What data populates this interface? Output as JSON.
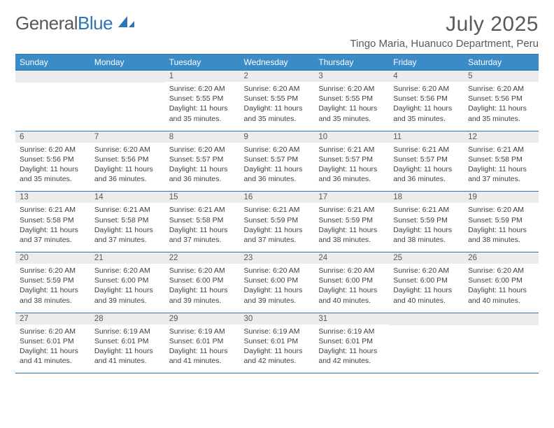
{
  "brand": {
    "part1": "General",
    "part2": "Blue"
  },
  "title": "July 2025",
  "location": "Tingo Maria, Huanuco Department, Peru",
  "colors": {
    "header_bg": "#3b8bc7",
    "border": "#2e75b6",
    "daynum_bg": "#ececec",
    "text": "#404040",
    "title": "#595959"
  },
  "weekdays": [
    "Sunday",
    "Monday",
    "Tuesday",
    "Wednesday",
    "Thursday",
    "Friday",
    "Saturday"
  ],
  "weeks": [
    [
      null,
      null,
      {
        "n": "1",
        "sr": "6:20 AM",
        "ss": "5:55 PM",
        "dl": "11 hours and 35 minutes."
      },
      {
        "n": "2",
        "sr": "6:20 AM",
        "ss": "5:55 PM",
        "dl": "11 hours and 35 minutes."
      },
      {
        "n": "3",
        "sr": "6:20 AM",
        "ss": "5:55 PM",
        "dl": "11 hours and 35 minutes."
      },
      {
        "n": "4",
        "sr": "6:20 AM",
        "ss": "5:56 PM",
        "dl": "11 hours and 35 minutes."
      },
      {
        "n": "5",
        "sr": "6:20 AM",
        "ss": "5:56 PM",
        "dl": "11 hours and 35 minutes."
      }
    ],
    [
      {
        "n": "6",
        "sr": "6:20 AM",
        "ss": "5:56 PM",
        "dl": "11 hours and 35 minutes."
      },
      {
        "n": "7",
        "sr": "6:20 AM",
        "ss": "5:56 PM",
        "dl": "11 hours and 36 minutes."
      },
      {
        "n": "8",
        "sr": "6:20 AM",
        "ss": "5:57 PM",
        "dl": "11 hours and 36 minutes."
      },
      {
        "n": "9",
        "sr": "6:20 AM",
        "ss": "5:57 PM",
        "dl": "11 hours and 36 minutes."
      },
      {
        "n": "10",
        "sr": "6:21 AM",
        "ss": "5:57 PM",
        "dl": "11 hours and 36 minutes."
      },
      {
        "n": "11",
        "sr": "6:21 AM",
        "ss": "5:57 PM",
        "dl": "11 hours and 36 minutes."
      },
      {
        "n": "12",
        "sr": "6:21 AM",
        "ss": "5:58 PM",
        "dl": "11 hours and 37 minutes."
      }
    ],
    [
      {
        "n": "13",
        "sr": "6:21 AM",
        "ss": "5:58 PM",
        "dl": "11 hours and 37 minutes."
      },
      {
        "n": "14",
        "sr": "6:21 AM",
        "ss": "5:58 PM",
        "dl": "11 hours and 37 minutes."
      },
      {
        "n": "15",
        "sr": "6:21 AM",
        "ss": "5:58 PM",
        "dl": "11 hours and 37 minutes."
      },
      {
        "n": "16",
        "sr": "6:21 AM",
        "ss": "5:59 PM",
        "dl": "11 hours and 37 minutes."
      },
      {
        "n": "17",
        "sr": "6:21 AM",
        "ss": "5:59 PM",
        "dl": "11 hours and 38 minutes."
      },
      {
        "n": "18",
        "sr": "6:21 AM",
        "ss": "5:59 PM",
        "dl": "11 hours and 38 minutes."
      },
      {
        "n": "19",
        "sr": "6:20 AM",
        "ss": "5:59 PM",
        "dl": "11 hours and 38 minutes."
      }
    ],
    [
      {
        "n": "20",
        "sr": "6:20 AM",
        "ss": "5:59 PM",
        "dl": "11 hours and 38 minutes."
      },
      {
        "n": "21",
        "sr": "6:20 AM",
        "ss": "6:00 PM",
        "dl": "11 hours and 39 minutes."
      },
      {
        "n": "22",
        "sr": "6:20 AM",
        "ss": "6:00 PM",
        "dl": "11 hours and 39 minutes."
      },
      {
        "n": "23",
        "sr": "6:20 AM",
        "ss": "6:00 PM",
        "dl": "11 hours and 39 minutes."
      },
      {
        "n": "24",
        "sr": "6:20 AM",
        "ss": "6:00 PM",
        "dl": "11 hours and 40 minutes."
      },
      {
        "n": "25",
        "sr": "6:20 AM",
        "ss": "6:00 PM",
        "dl": "11 hours and 40 minutes."
      },
      {
        "n": "26",
        "sr": "6:20 AM",
        "ss": "6:00 PM",
        "dl": "11 hours and 40 minutes."
      }
    ],
    [
      {
        "n": "27",
        "sr": "6:20 AM",
        "ss": "6:01 PM",
        "dl": "11 hours and 41 minutes."
      },
      {
        "n": "28",
        "sr": "6:19 AM",
        "ss": "6:01 PM",
        "dl": "11 hours and 41 minutes."
      },
      {
        "n": "29",
        "sr": "6:19 AM",
        "ss": "6:01 PM",
        "dl": "11 hours and 41 minutes."
      },
      {
        "n": "30",
        "sr": "6:19 AM",
        "ss": "6:01 PM",
        "dl": "11 hours and 42 minutes."
      },
      {
        "n": "31",
        "sr": "6:19 AM",
        "ss": "6:01 PM",
        "dl": "11 hours and 42 minutes."
      },
      null,
      null
    ]
  ],
  "labels": {
    "sunrise": "Sunrise:",
    "sunset": "Sunset:",
    "daylight": "Daylight:"
  }
}
